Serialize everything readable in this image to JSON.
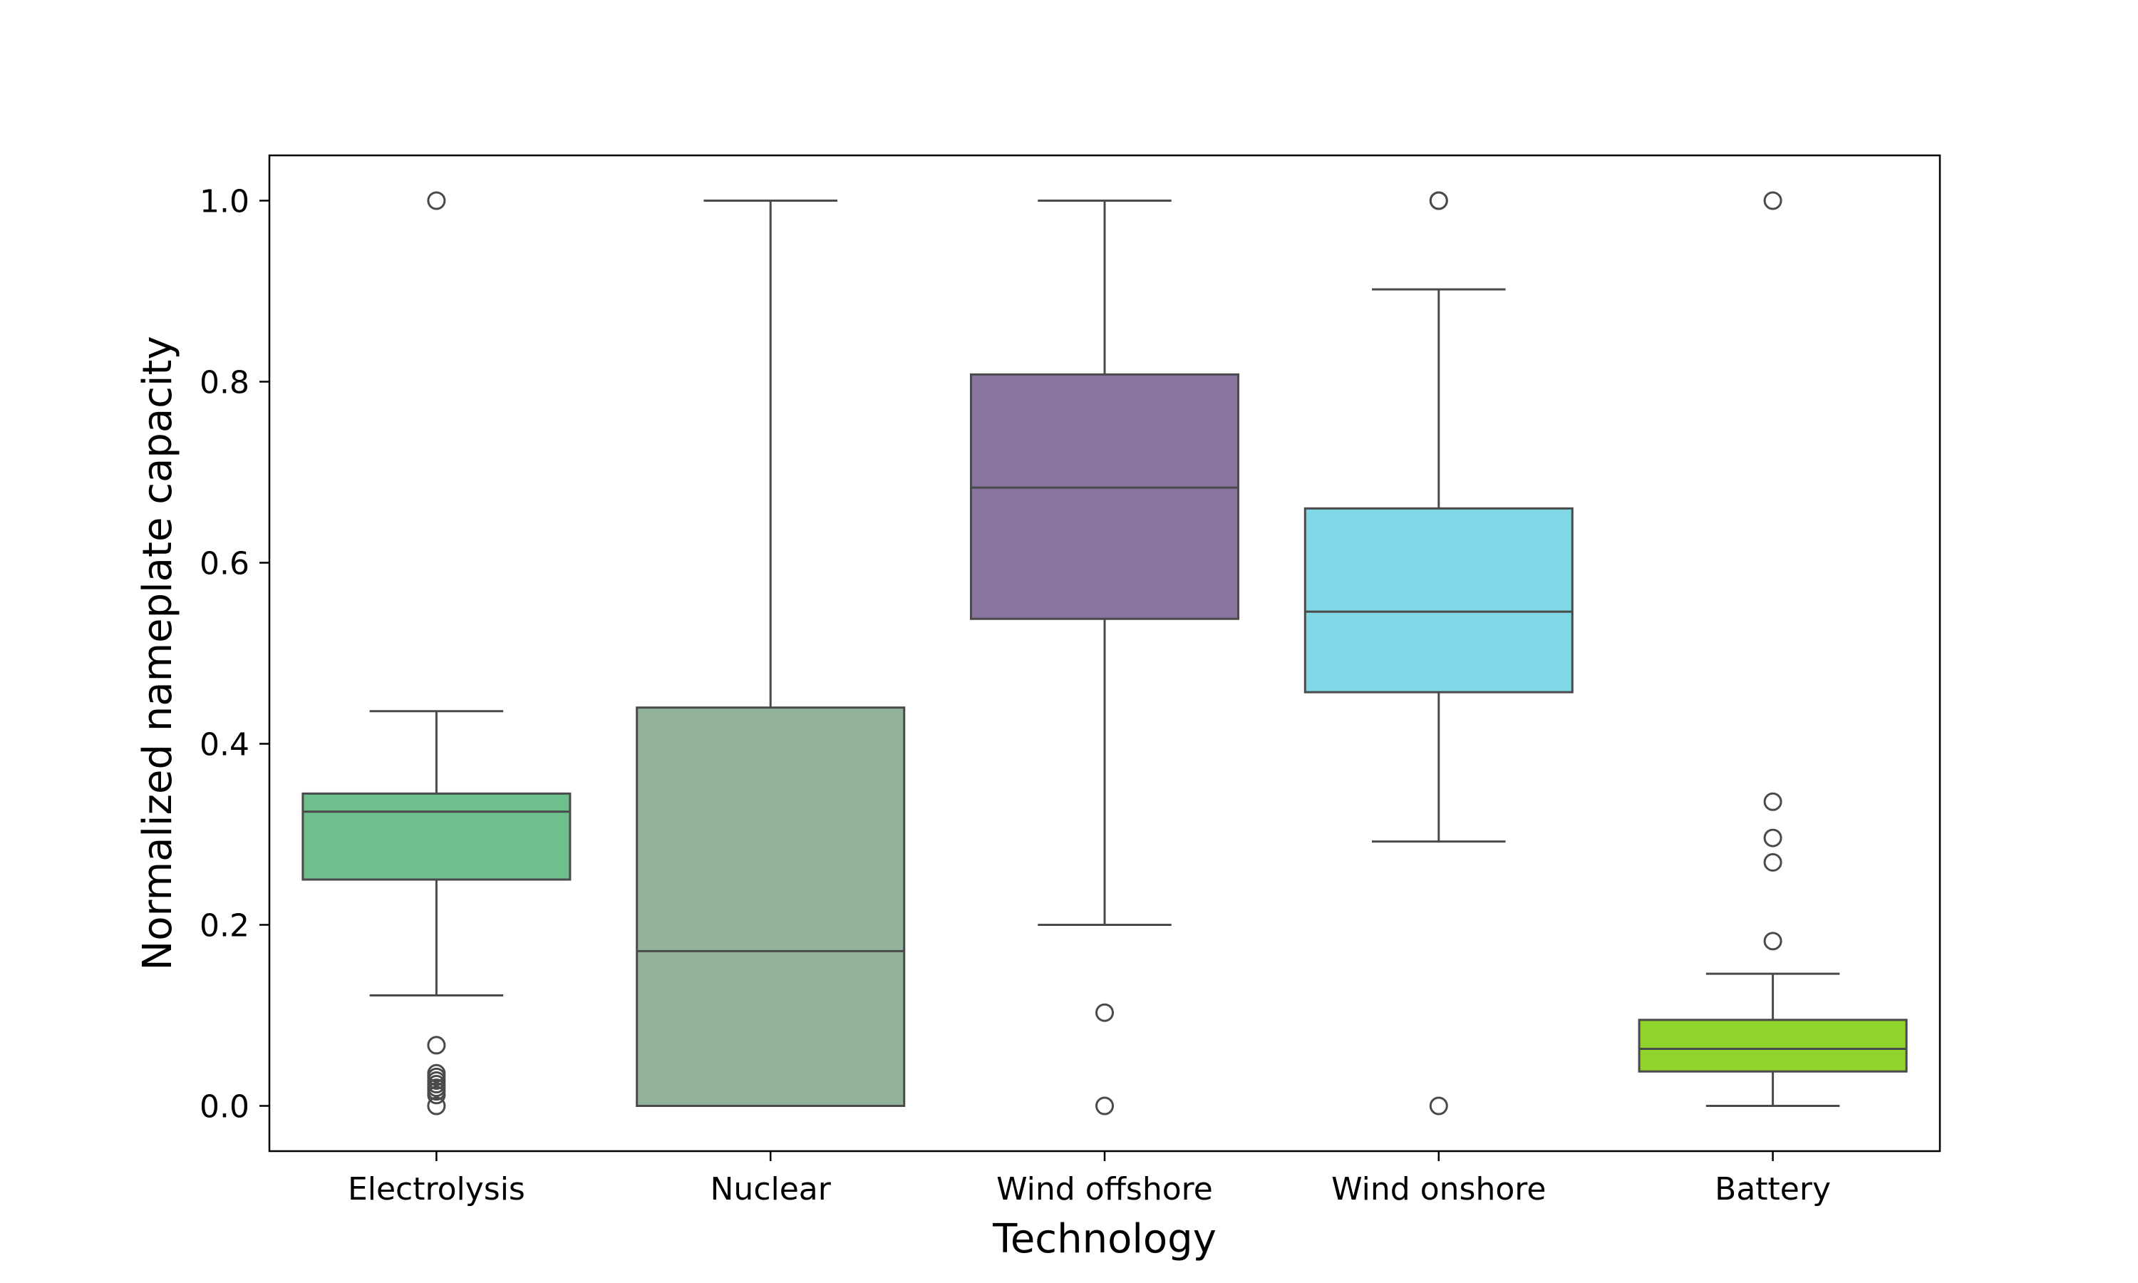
{
  "chart_data": {
    "type": "box",
    "xlabel": "Technology",
    "ylabel": "Normalized nameplate capacity",
    "ylim": [
      -0.05,
      1.05
    ],
    "yticks": [
      0.0,
      0.2,
      0.4,
      0.6,
      0.8,
      1.0
    ],
    "ytick_labels": [
      "0.0",
      "0.2",
      "0.4",
      "0.6",
      "0.8",
      "1.0"
    ],
    "grid": false,
    "categories": [
      "Electrolysis",
      "Nuclear",
      "Wind offshore",
      "Wind onshore",
      "Battery"
    ],
    "boxes": [
      {
        "category": "Electrolysis",
        "color": "#6dbf8b",
        "whisker_low": 0.122,
        "q1": 0.25,
        "median": 0.325,
        "q3": 0.345,
        "whisker_high": 0.436,
        "outliers": [
          1.0,
          0.067,
          0.036,
          0.032,
          0.028,
          0.024,
          0.02,
          0.016,
          0.012,
          0.0
        ]
      },
      {
        "category": "Nuclear",
        "color": "#92b29c",
        "whisker_low": 0.0,
        "q1": 0.0,
        "median": 0.171,
        "q3": 0.44,
        "whisker_high": 1.0,
        "outliers": []
      },
      {
        "category": "Wind offshore",
        "color": "#89739f",
        "whisker_low": 0.2,
        "q1": 0.538,
        "median": 0.683,
        "q3": 0.808,
        "whisker_high": 1.0,
        "outliers": [
          0.103,
          0.0
        ]
      },
      {
        "category": "Wind onshore",
        "color": "#80d7e6",
        "whisker_low": 0.292,
        "q1": 0.457,
        "median": 0.546,
        "q3": 0.66,
        "whisker_high": 0.902,
        "outliers": [
          1.0,
          1.0,
          0.0
        ]
      },
      {
        "category": "Battery",
        "color": "#90d32c",
        "whisker_low": 0.0,
        "q1": 0.038,
        "median": 0.063,
        "q3": 0.095,
        "whisker_high": 0.146,
        "outliers": [
          1.0,
          0.336,
          0.296,
          0.269,
          0.182
        ]
      }
    ]
  }
}
